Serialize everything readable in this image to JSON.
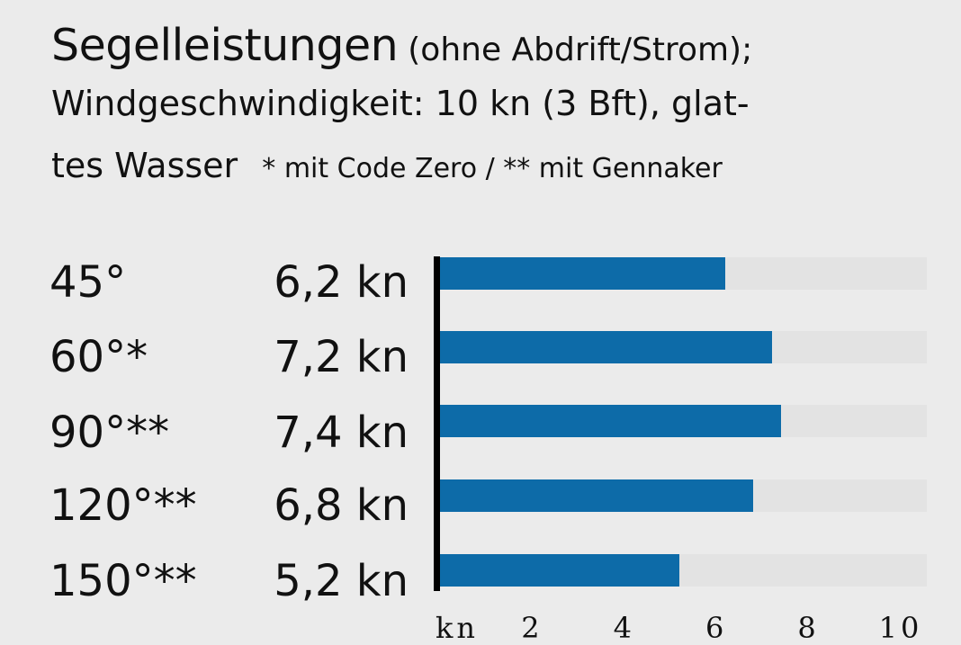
{
  "header": {
    "title_main": "Segelleistungen",
    "title_sub": "(ohne Abdrift/Strom);",
    "line2": "Windgeschwindigkeit: 10 kn (3 Bft), glat-",
    "line3_main": "tes Wasser",
    "line3_note": "* mit Code Zero / ** mit Gennaker"
  },
  "chart_data": {
    "type": "bar",
    "orientation": "horizontal",
    "categories": [
      "45°",
      "60°*",
      "90°**",
      "120°**",
      "150°**"
    ],
    "value_labels": [
      "6,2 kn",
      "7,2 kn",
      "7,4 kn",
      "6,8 kn",
      "5,2 kn"
    ],
    "values": [
      6.2,
      7.2,
      7.4,
      6.8,
      5.2
    ],
    "xlim": [
      0,
      10
    ],
    "x_ticks": [
      "2",
      "4",
      "6",
      "8",
      "10"
    ],
    "x_unit": "kn",
    "bar_color": "#0d6ba8",
    "track_color": "#e3e3e3",
    "background_color": "#ebebeb"
  }
}
